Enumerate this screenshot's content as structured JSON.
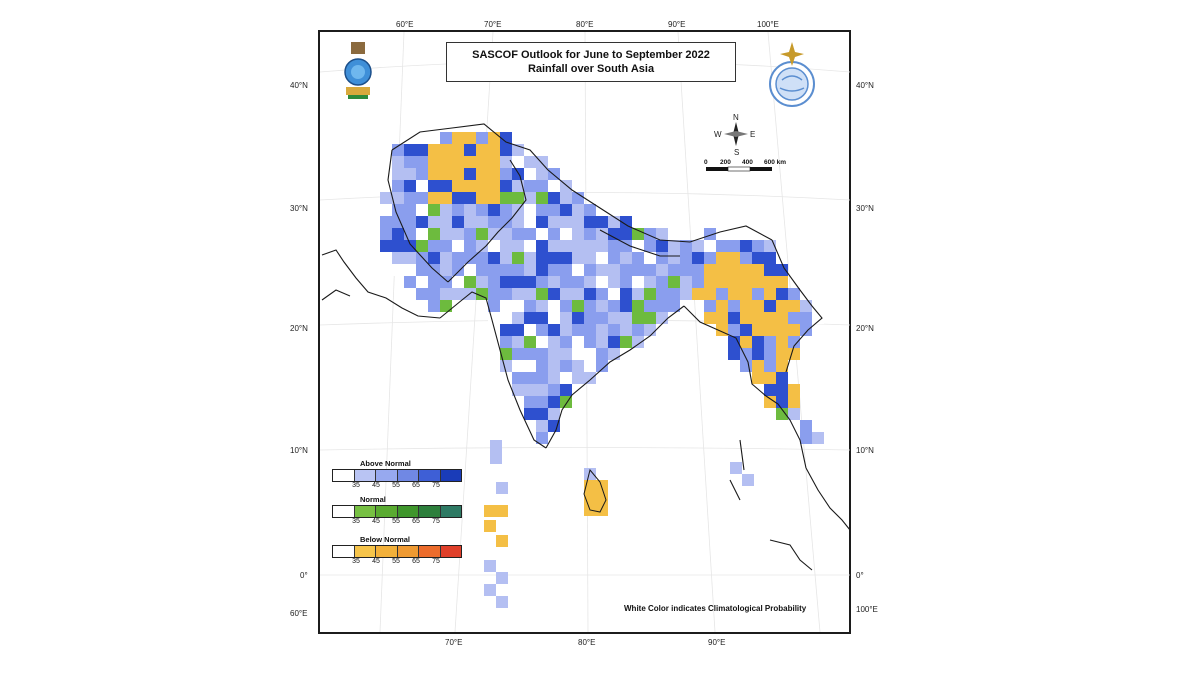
{
  "title": {
    "line1": "SASCOF Outlook for June to September 2022",
    "line2": "Rainfall over South Asia"
  },
  "footnote": "White Color indicates Climatological Probability",
  "graticule": {
    "top_lon_labels": [
      "60°E",
      "70°E",
      "80°E",
      "90°E",
      "100°E"
    ],
    "bottom_lon_labels": [
      "70°E",
      "80°E",
      "90°E"
    ],
    "left_lat_labels": [
      "40°N",
      "30°N",
      "20°N",
      "10°N",
      "0°",
      "60°E"
    ],
    "right_lat_labels": [
      "40°N",
      "30°N",
      "20°N",
      "10°N",
      "0°",
      "100°E"
    ]
  },
  "compass": {
    "n": "N",
    "s": "S",
    "e": "E",
    "w": "W"
  },
  "scale_bar": {
    "labels": [
      "0",
      "200",
      "400",
      "600 km"
    ]
  },
  "legend": [
    {
      "title": "Above Normal",
      "ticks": [
        "35",
        "45",
        "55",
        "65",
        "75"
      ],
      "colors": [
        "#ffffff",
        "#b9c4f3",
        "#97a9ef",
        "#7088e4",
        "#3e5fd6",
        "#1a3cb8"
      ]
    },
    {
      "title": "Normal",
      "ticks": [
        "35",
        "45",
        "55",
        "65",
        "75"
      ],
      "colors": [
        "#ffffff",
        "#77c043",
        "#5aab31",
        "#3f962c",
        "#2d7f3c",
        "#2e7a64"
      ]
    },
    {
      "title": "Below Normal",
      "ticks": [
        "35",
        "45",
        "55",
        "65",
        "75"
      ],
      "colors": [
        "#ffffff",
        "#f6c44a",
        "#f2b03a",
        "#ef9a32",
        "#ec6c2c",
        "#e0402a"
      ]
    }
  ],
  "colors": {
    "above_light": "#b4bff2",
    "above_mid": "#8a9eee",
    "above_dark": "#2e50cf",
    "normal": "#6dbb3e",
    "below": "#f4bf45",
    "coast": "#1a1a1a"
  }
}
